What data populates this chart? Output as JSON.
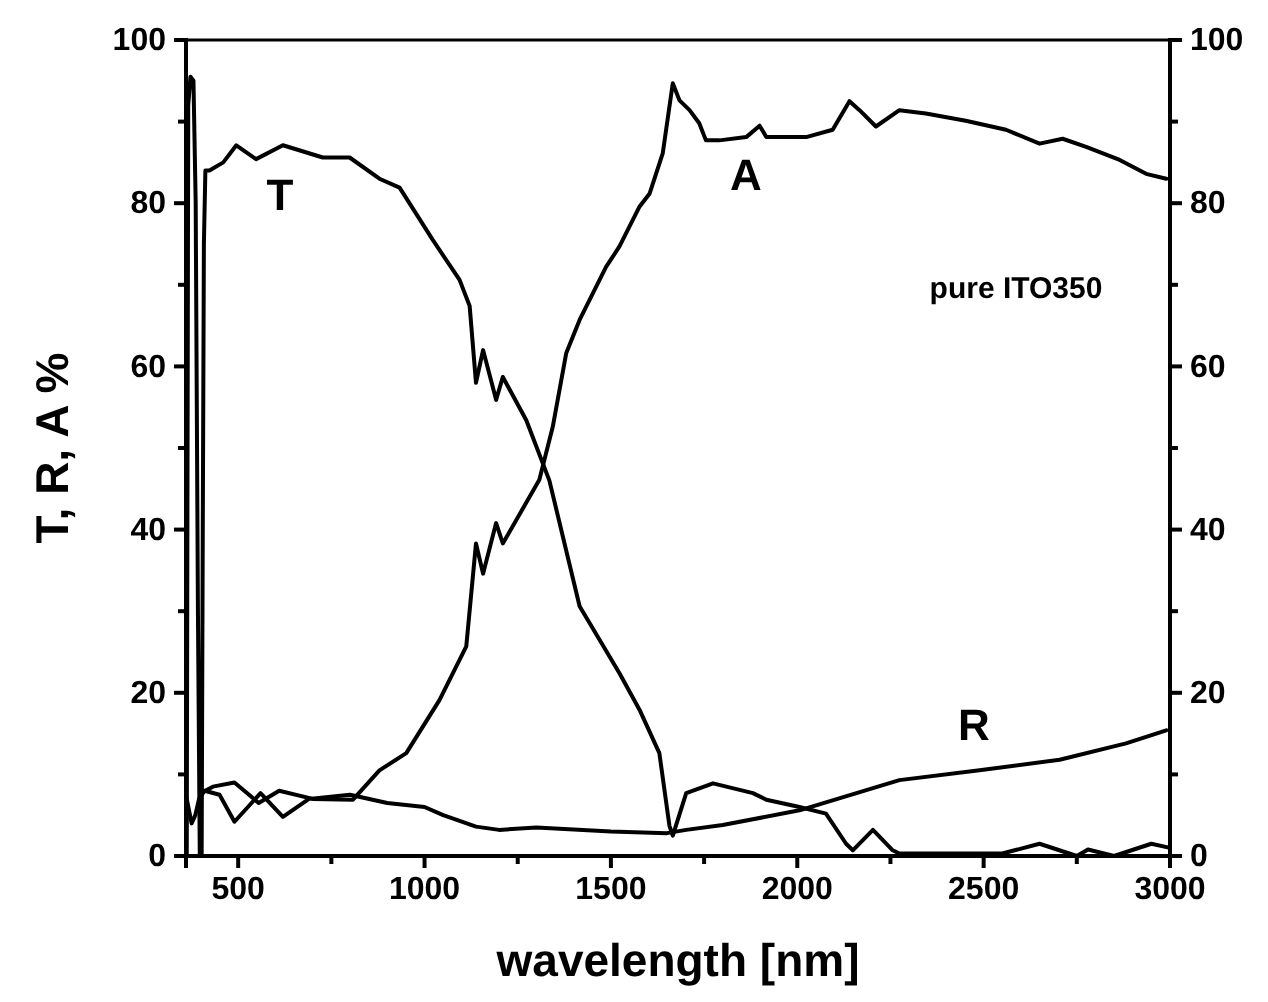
{
  "chart_data": {
    "type": "line",
    "xlabel": "wavelength [nm]",
    "ylabel": "T, R, A %",
    "annotations": [
      "pure ITO350"
    ],
    "xlim": [
      360,
      3000
    ],
    "xticks": [
      500,
      {
        "value": 750,
        "label": null
      },
      1000,
      {
        "value": 1250,
        "label": null
      },
      1500,
      {
        "value": 1750,
        "label": null
      },
      2000,
      {
        "value": 2250,
        "label": null
      },
      2500,
      {
        "value": 2750,
        "label": null
      },
      3000
    ],
    "ylim": [
      0,
      100
    ],
    "yticks": [
      0,
      {
        "value": 10,
        "label": null
      },
      20,
      {
        "value": 30,
        "label": null
      },
      40,
      {
        "value": 50,
        "label": null
      },
      60,
      {
        "value": 70,
        "label": null
      },
      80,
      {
        "value": 90,
        "label": null
      },
      100
    ],
    "y2lim": [
      0,
      100
    ],
    "y2ticks": [
      0,
      {
        "value": 10,
        "label": null
      },
      20,
      {
        "value": 30,
        "label": null
      },
      40,
      {
        "value": 50,
        "label": null
      },
      60,
      {
        "value": 70,
        "label": null
      },
      80,
      {
        "value": 90,
        "label": null
      },
      100
    ],
    "grid": false,
    "legend": false,
    "marker": "none",
    "line_style": "solid",
    "series": [
      {
        "name": "T",
        "color": "#000000",
        "x": [
          362,
          366,
          372,
          380,
          386,
          392,
          397,
          402,
          405,
          408,
          412,
          423,
          460,
          495,
          548,
          620,
          727,
          799,
          879,
          933,
          1022,
          1094,
          1121,
          1138,
          1157,
          1192,
          1210,
          1273,
          1335,
          1416,
          1523,
          1577,
          1630,
          1657,
          1666,
          1702,
          1774,
          1881,
          1917,
          2006,
          2077,
          2131,
          2149,
          2203,
          2256,
          2274,
          2400,
          2550,
          2650,
          2750,
          2780,
          2850,
          2950,
          3000
        ],
        "values": [
          0,
          92,
          95.5,
          95,
          80,
          30,
          0,
          0,
          40,
          75,
          84,
          84,
          85,
          87.1,
          85.4,
          87.1,
          85.6,
          85.6,
          83,
          81.9,
          75.5,
          70.6,
          67.4,
          58,
          62,
          55.9,
          58.7,
          53.4,
          46,
          30.6,
          22.4,
          17.9,
          12.6,
          3.7,
          2.5,
          7.7,
          8.9,
          7.7,
          6.9,
          6,
          5.2,
          1.5,
          0.7,
          3.2,
          0.7,
          0.3,
          0.3,
          0.3,
          1.5,
          0,
          0.8,
          0,
          1.5,
          1
        ]
      },
      {
        "name": "R",
        "color": "#000000",
        "x": [
          362,
          375,
          385,
          395,
          410,
          450,
          490,
          560,
          620,
          690,
          800,
          900,
          1000,
          1050,
          1138,
          1200,
          1300,
          1500,
          1650,
          1702,
          1800,
          2006,
          2274,
          2489,
          2704,
          2882,
          2990
        ],
        "values": [
          7,
          4,
          5,
          7,
          8,
          7.5,
          4.2,
          7.7,
          4.8,
          7,
          7.5,
          6.5,
          6,
          5,
          3.6,
          3.2,
          3.5,
          3,
          2.8,
          3.2,
          3.8,
          5.6,
          9.3,
          10.5,
          11.8,
          13.8,
          15.4
        ]
      },
      {
        "name": "A",
        "color": "#000000",
        "x": [
          412,
          432,
          490,
          555,
          610,
          700,
          808,
          879,
          951,
          1040,
          1112,
          1138,
          1157,
          1192,
          1210,
          1308,
          1344,
          1380,
          1416,
          1487,
          1523,
          1577,
          1604,
          1639,
          1666,
          1684,
          1711,
          1737,
          1755,
          1791,
          1863,
          1899,
          1917,
          2024,
          2095,
          2140,
          2167,
          2211,
          2274,
          2345,
          2452,
          2560,
          2650,
          2712,
          2775,
          2865,
          2936,
          2990
        ],
        "values": [
          8,
          8.5,
          9,
          6.5,
          8,
          7,
          6.9,
          10.5,
          12.6,
          19.1,
          25.7,
          38.3,
          34.6,
          40.8,
          38.3,
          46.1,
          52.6,
          61.6,
          65.7,
          72.2,
          74.7,
          79.6,
          81.2,
          86.1,
          94.7,
          92.6,
          91.4,
          89.8,
          87.7,
          87.7,
          88.1,
          89.5,
          88.1,
          88.1,
          89,
          92.5,
          91.4,
          89.4,
          91.4,
          91,
          90.1,
          89,
          87.3,
          87.9,
          86.9,
          85.3,
          83.6,
          83
        ]
      }
    ]
  }
}
